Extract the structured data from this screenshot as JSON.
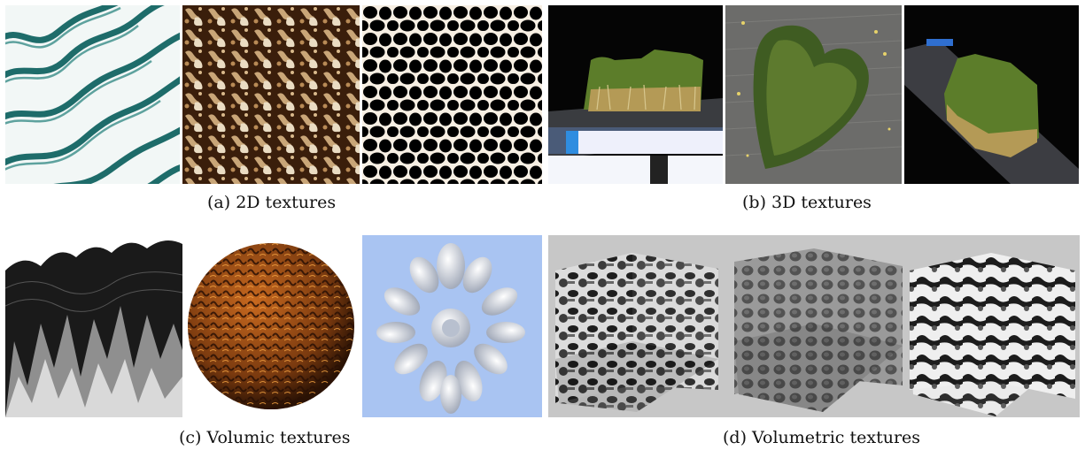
{
  "figure": {
    "captions": {
      "a": "(a) 2D textures",
      "b": "(b) 3D textures",
      "c": "(c) Volumic textures",
      "d": "(d) Volumetric textures"
    }
  },
  "panels": {
    "a": [
      "teal wavy stripes texture",
      "brown mottled texture",
      "black cellular texture on white"
    ],
    "b": [
      "grass block on table",
      "heart-shaped grass patch",
      "grass block on slanted board"
    ],
    "c": [
      "grey height-field terrain",
      "brown textured sphere",
      "white petal flower on blue"
    ],
    "d": [
      "noise-textured slice planes",
      "cellular-textured slice planes",
      "marble-textured slice planes"
    ]
  },
  "colors": {
    "teal": "#1e6c6a",
    "grass_green": "#5c7d2a",
    "grass_dry": "#b49a56",
    "sphere_brown": "#8a4412",
    "flower_bg": "#a9c4f2",
    "grey_bg": "#c7c7c7"
  }
}
